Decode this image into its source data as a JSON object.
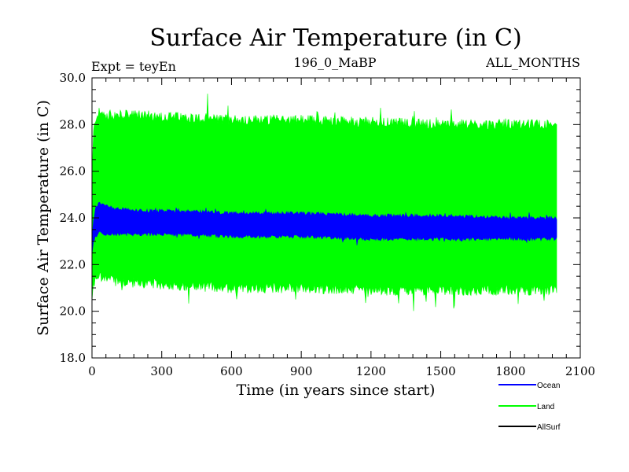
{
  "chart_data": {
    "type": "line",
    "title": "Surface Air Temperature (in C)",
    "subtitle_left": "Expt = teyEn",
    "subtitle_center": "196_0_MaBP",
    "subtitle_right": "ALL_MONTHS",
    "xlabel": "Time (in years since start)",
    "ylabel": "Surface Air Temperature (in C)",
    "xlim": [
      0,
      2100
    ],
    "ylim": [
      18.0,
      30.0
    ],
    "x_ticks": [
      "0",
      "300",
      "600",
      "900",
      "1200",
      "1500",
      "1800",
      "2100"
    ],
    "y_ticks": [
      "18.0",
      "20.0",
      "22.0",
      "24.0",
      "26.0",
      "28.0",
      "30.0"
    ],
    "x_tick_values": [
      0,
      300,
      600,
      900,
      1200,
      1500,
      1800,
      2100
    ],
    "y_tick_values": [
      18,
      20,
      22,
      24,
      26,
      28,
      30
    ],
    "x_data_end": 2000,
    "series": [
      {
        "name": "Land",
        "color": "#00ff00",
        "envelope_x": [
          0,
          5,
          15,
          30,
          60,
          100,
          200,
          400,
          600,
          900,
          1200,
          1500,
          1800,
          2000
        ],
        "upper": [
          25.0,
          27.5,
          28.3,
          28.5,
          28.4,
          28.4,
          28.4,
          28.3,
          28.2,
          28.2,
          28.1,
          28.0,
          28.0,
          28.0
        ],
        "lower": [
          20.5,
          21.0,
          21.4,
          21.5,
          21.4,
          21.3,
          21.2,
          21.1,
          21.0,
          21.0,
          20.9,
          20.9,
          20.9,
          20.9
        ]
      },
      {
        "name": "Ocean",
        "color": "#0000ff",
        "envelope_x": [
          0,
          5,
          15,
          30,
          60,
          100,
          200,
          400,
          600,
          900,
          1200,
          1500,
          1800,
          2000
        ],
        "upper": [
          22.8,
          23.8,
          24.4,
          24.6,
          24.5,
          24.4,
          24.3,
          24.3,
          24.2,
          24.2,
          24.1,
          24.1,
          24.0,
          24.0
        ],
        "lower": [
          22.5,
          22.9,
          23.2,
          23.4,
          23.3,
          23.3,
          23.3,
          23.3,
          23.2,
          23.2,
          23.1,
          23.1,
          23.1,
          23.1
        ]
      },
      {
        "name": "AllSurf",
        "color": "#000000"
      }
    ],
    "legend": {
      "position": "bottom-right",
      "entries": [
        {
          "label": "Ocean",
          "color": "#0000ff"
        },
        {
          "label": "Land",
          "color": "#00ff00"
        },
        {
          "label": "AllSurf",
          "color": "#000000"
        }
      ]
    }
  }
}
